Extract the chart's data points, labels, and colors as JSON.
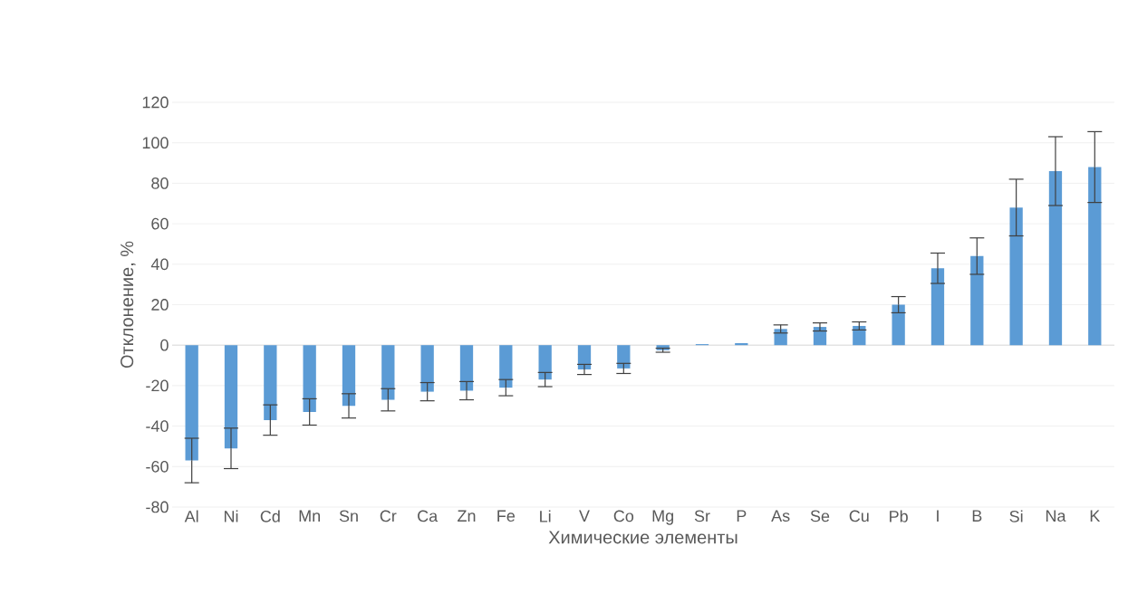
{
  "chart_data": {
    "type": "bar",
    "xlabel": "Химические элементы",
    "ylabel": "Отклонение, %",
    "categories": [
      "Al",
      "Ni",
      "Cd",
      "Mn",
      "Sn",
      "Cr",
      "Ca",
      "Zn",
      "Fe",
      "Li",
      "V",
      "Co",
      "Mg",
      "Sr",
      "P",
      "As",
      "Se",
      "Cu",
      "Pb",
      "I",
      "B",
      "Si",
      "Na",
      "K"
    ],
    "values": [
      -57,
      -51,
      -37,
      -33,
      -30,
      -27,
      -23,
      -22.5,
      -21,
      -17,
      -12,
      -11.5,
      -2.5,
      0.5,
      1,
      8,
      9,
      9.5,
      20,
      38,
      44,
      68,
      86,
      88
    ],
    "errors": [
      11,
      10,
      7.5,
      6.5,
      6,
      5.5,
      4.5,
      4.5,
      4,
      3.5,
      2.5,
      2.5,
      1,
      null,
      null,
      2,
      2,
      2,
      4,
      7.5,
      9,
      14,
      17,
      17.5
    ],
    "color": "#5b9bd5",
    "ylim": [
      -80,
      120
    ],
    "yticks": [
      -80,
      -60,
      -40,
      -20,
      0,
      20,
      40,
      60,
      80,
      100,
      120
    ],
    "grid": "y"
  }
}
